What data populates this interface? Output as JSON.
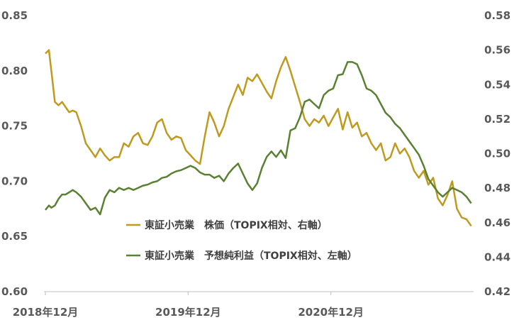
{
  "chart_data": {
    "type": "line",
    "title": "",
    "x_range": [
      "2018-12",
      "2021-12"
    ],
    "x_ticks": [
      "2018年12月",
      "2019年12月",
      "2020年12月"
    ],
    "left_axis": {
      "ticks": [
        "0.85",
        "0.80",
        "0.75",
        "0.70",
        "0.65",
        "0.60"
      ],
      "ylim": [
        0.6,
        0.85
      ]
    },
    "right_axis": {
      "ticks": [
        "0.58",
        "0.56",
        "0.54",
        "0.52",
        "0.50",
        "0.48",
        "0.46",
        "0.44",
        "0.42"
      ],
      "ylim": [
        0.42,
        0.58
      ]
    },
    "grid": false,
    "series": [
      {
        "name": "東証小売業　株価（TOPIX相対、右軸）",
        "axis": "right",
        "color": "#C09A1E",
        "x": [
          0,
          0.3,
          0.5,
          0.8,
          1.1,
          1.4,
          1.7,
          2.0,
          2.3,
          2.6,
          3.0,
          3.4,
          3.8,
          4.2,
          4.6,
          5.0,
          5.4,
          5.8,
          6.2,
          6.6,
          7.0,
          7.4,
          7.8,
          8.2,
          8.6,
          9.0,
          9.4,
          9.8,
          10.2,
          10.6,
          11.0,
          11.4,
          11.8,
          12.2,
          12.6,
          13.0,
          13.4,
          13.8,
          14.2,
          14.6,
          15.0,
          15.4,
          15.8,
          16.2,
          16.6,
          17.0,
          17.4,
          17.8,
          18.2,
          18.6,
          19.0,
          19.4,
          19.8,
          20.2,
          20.6,
          21.0,
          21.4,
          21.8,
          22.2,
          22.6,
          23.0,
          23.4,
          23.8,
          24.2,
          24.6,
          25.0,
          25.4,
          25.8,
          26.2,
          26.6,
          27.0,
          27.4,
          27.8,
          28.2,
          28.6,
          29.0,
          29.4,
          29.8,
          30.2,
          30.6,
          31.0,
          31.4,
          31.8,
          32.2,
          32.6,
          33.0,
          33.4,
          33.8,
          34.2,
          34.6,
          35.0,
          35.4,
          35.8
        ],
        "values": [
          0.558,
          0.56,
          0.548,
          0.53,
          0.528,
          0.53,
          0.527,
          0.524,
          0.525,
          0.524,
          0.516,
          0.506,
          0.502,
          0.498,
          0.503,
          0.499,
          0.496,
          0.498,
          0.498,
          0.506,
          0.504,
          0.51,
          0.512,
          0.506,
          0.505,
          0.51,
          0.518,
          0.52,
          0.512,
          0.508,
          0.51,
          0.509,
          0.502,
          0.499,
          0.496,
          0.494,
          0.51,
          0.524,
          0.518,
          0.51,
          0.516,
          0.526,
          0.533,
          0.54,
          0.534,
          0.544,
          0.542,
          0.546,
          0.541,
          0.536,
          0.532,
          0.542,
          0.55,
          0.556,
          0.548,
          0.539,
          0.53,
          0.52,
          0.516,
          0.52,
          0.518,
          0.522,
          0.516,
          0.521,
          0.526,
          0.514,
          0.524,
          0.515,
          0.518,
          0.51,
          0.512,
          0.506,
          0.502,
          0.506,
          0.496,
          0.498,
          0.506,
          0.5,
          0.503,
          0.498,
          0.49,
          0.486,
          0.49,
          0.482,
          0.486,
          0.474,
          0.47,
          0.476,
          0.484,
          0.468,
          0.463,
          0.462,
          0.458
        ]
      },
      {
        "name": "東証小売業　予想純利益（TOPIX相対、左軸）",
        "axis": "left",
        "color": "#5A8132",
        "x": [
          0,
          0.3,
          0.5,
          0.8,
          1.1,
          1.4,
          1.7,
          2.0,
          2.3,
          2.6,
          3.0,
          3.4,
          3.8,
          4.2,
          4.6,
          5.0,
          5.4,
          5.8,
          6.2,
          6.6,
          7.0,
          7.4,
          7.8,
          8.2,
          8.6,
          9.0,
          9.4,
          9.8,
          10.2,
          10.6,
          11.0,
          11.4,
          11.8,
          12.2,
          12.6,
          13.0,
          13.4,
          13.8,
          14.2,
          14.6,
          15.0,
          15.4,
          15.8,
          16.2,
          16.6,
          17.0,
          17.4,
          17.8,
          18.2,
          18.6,
          19.0,
          19.4,
          19.8,
          20.2,
          20.6,
          21.0,
          21.4,
          21.8,
          22.2,
          22.6,
          23.0,
          23.4,
          23.8,
          24.2,
          24.6,
          25.0,
          25.4,
          25.8,
          26.2,
          26.6,
          27.0,
          27.4,
          27.8,
          28.2,
          28.6,
          29.0,
          29.4,
          29.8,
          30.2,
          30.6,
          31.0,
          31.4,
          31.8,
          32.2,
          32.6,
          33.0,
          33.4,
          33.8,
          34.2,
          34.6,
          35.0,
          35.4,
          35.8
        ],
        "values": [
          0.674,
          0.678,
          0.676,
          0.678,
          0.684,
          0.688,
          0.688,
          0.69,
          0.692,
          0.69,
          0.686,
          0.68,
          0.674,
          0.676,
          0.67,
          0.685,
          0.692,
          0.69,
          0.694,
          0.692,
          0.694,
          0.692,
          0.694,
          0.696,
          0.697,
          0.699,
          0.7,
          0.703,
          0.704,
          0.707,
          0.709,
          0.71,
          0.712,
          0.714,
          0.712,
          0.708,
          0.706,
          0.706,
          0.703,
          0.705,
          0.7,
          0.707,
          0.712,
          0.716,
          0.707,
          0.698,
          0.692,
          0.698,
          0.712,
          0.722,
          0.727,
          0.722,
          0.728,
          0.721,
          0.746,
          0.748,
          0.758,
          0.772,
          0.774,
          0.77,
          0.766,
          0.778,
          0.782,
          0.784,
          0.796,
          0.797,
          0.808,
          0.808,
          0.806,
          0.796,
          0.784,
          0.782,
          0.778,
          0.77,
          0.762,
          0.758,
          0.752,
          0.748,
          0.742,
          0.736,
          0.73,
          0.724,
          0.714,
          0.702,
          0.696,
          0.69,
          0.686,
          0.69,
          0.694,
          0.692,
          0.69,
          0.686,
          0.68
        ]
      }
    ]
  }
}
